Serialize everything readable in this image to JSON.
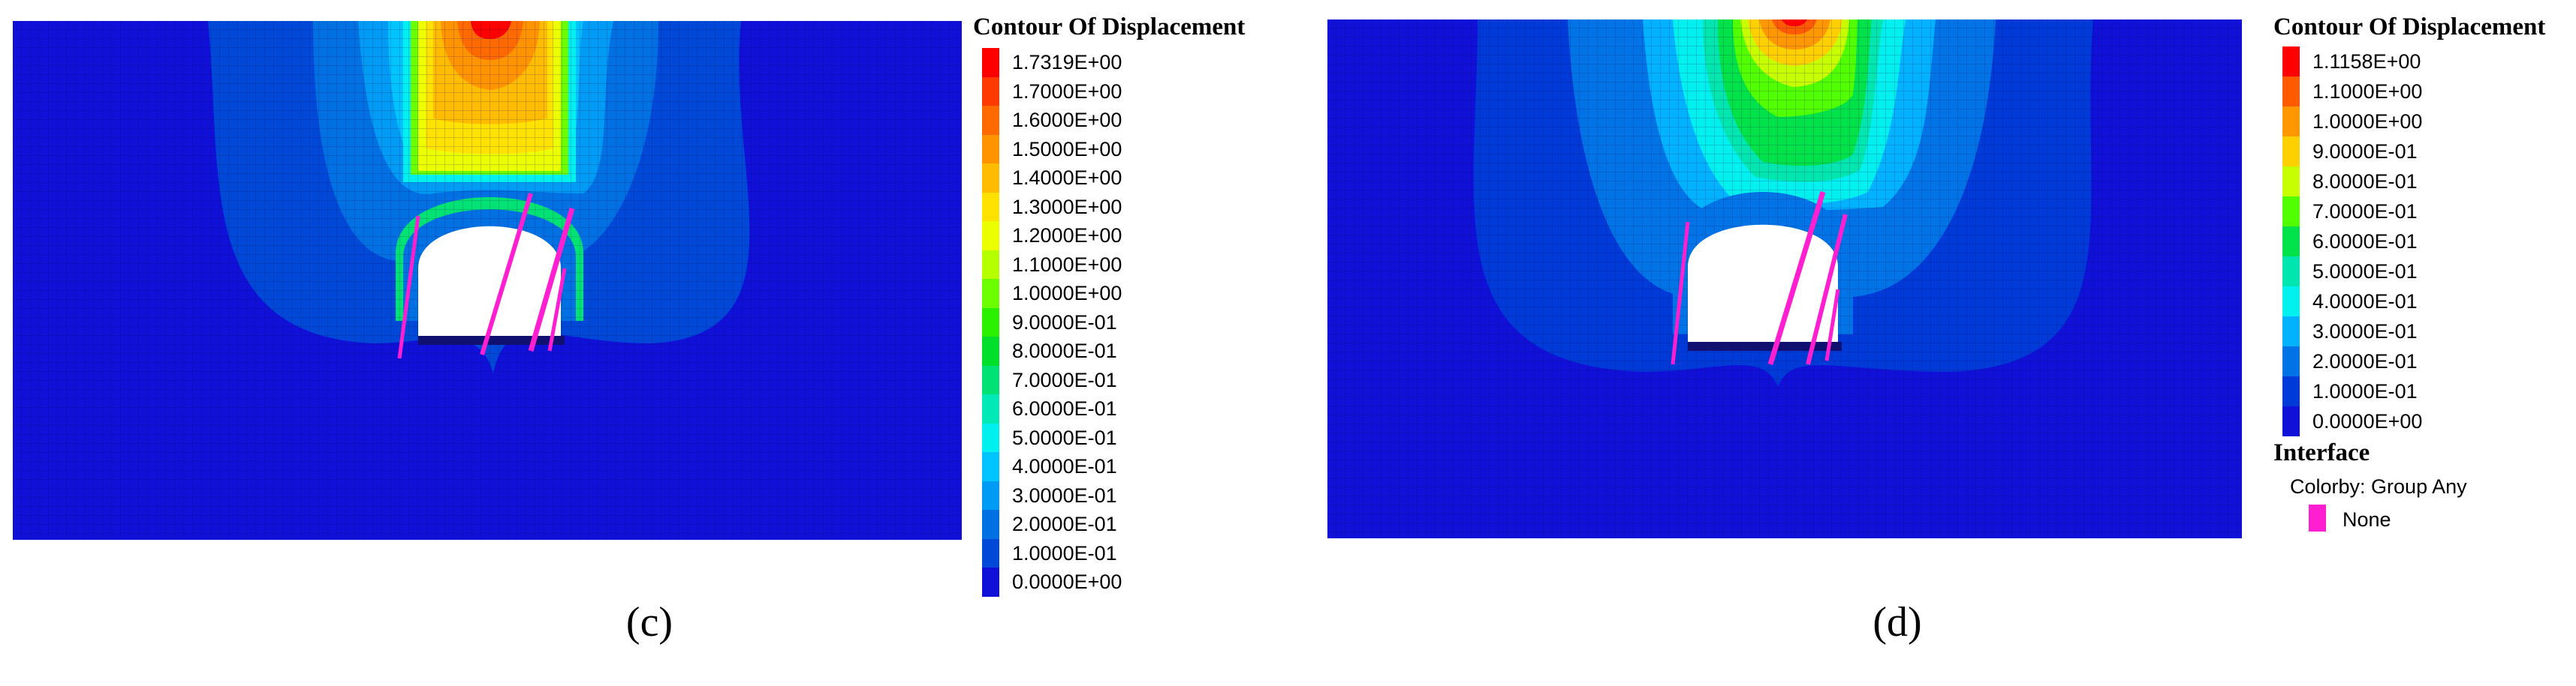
{
  "panels": [
    {
      "id": "c",
      "caption": "(c)",
      "legend_title": "Contour Of Displacement",
      "levels": [
        "1.7319E+00",
        "1.7000E+00",
        "1.6000E+00",
        "1.5000E+00",
        "1.4000E+00",
        "1.3000E+00",
        "1.2000E+00",
        "1.1000E+00",
        "1.0000E+00",
        "9.0000E-01",
        "8.0000E-01",
        "7.0000E-01",
        "6.0000E-01",
        "5.0000E-01",
        "4.0000E-01",
        "3.0000E-01",
        "2.0000E-01",
        "1.0000E-01",
        "0.0000E+00"
      ],
      "colors": [
        "#fe0000",
        "#ff3a00",
        "#ff6a00",
        "#ff9400",
        "#ffbc00",
        "#ffe200",
        "#ecff00",
        "#b5ff00",
        "#6cff00",
        "#2bf000",
        "#00e02a",
        "#00e374",
        "#00e9b7",
        "#00f0f0",
        "#00c4ff",
        "#009bf5",
        "#0070e2",
        "#0048d8",
        "#1010d8"
      ]
    },
    {
      "id": "d",
      "caption": "(d)",
      "legend_title": "Contour Of Displacement",
      "levels": [
        "1.1158E+00",
        "1.1000E+00",
        "1.0000E+00",
        "9.0000E-01",
        "8.0000E-01",
        "7.0000E-01",
        "6.0000E-01",
        "5.0000E-01",
        "4.0000E-01",
        "3.0000E-01",
        "2.0000E-01",
        "1.0000E-01",
        "0.0000E+00"
      ],
      "colors": [
        "#fe0000",
        "#ff5a00",
        "#ff9800",
        "#ffd000",
        "#c8ff00",
        "#52ff00",
        "#00e24a",
        "#00e6b0",
        "#00f0f0",
        "#00b2ff",
        "#0074e6",
        "#003ad8",
        "#1010d8"
      ],
      "interface": {
        "title": "Interface",
        "colorby": "Colorby: Group Any",
        "item": "None",
        "color": "#ff1fd0"
      }
    }
  ]
}
